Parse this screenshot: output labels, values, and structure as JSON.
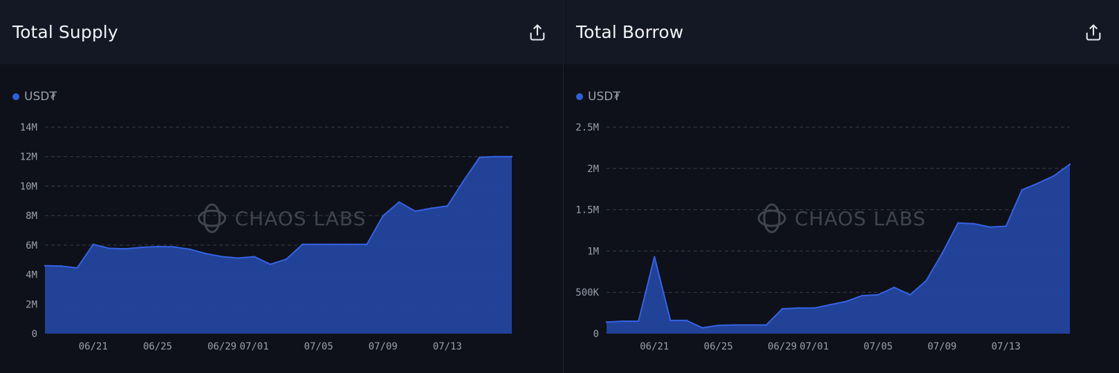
{
  "panels": [
    {
      "title": "Total Supply",
      "legend": "USD₮",
      "watermark": "CHAOS LABS",
      "share_icon": "share-upload-icon"
    },
    {
      "title": "Total Borrow",
      "legend": "USD₮",
      "watermark": "CHAOS LABS",
      "share_icon": "share-upload-icon"
    }
  ],
  "colors": {
    "fill": "#2446a3",
    "line": "#3563e6",
    "grid": "#3a3f4c",
    "axis_text": "#9aa0ad",
    "watermark": "#6a6e78"
  },
  "chart_data": [
    {
      "type": "area",
      "title": "Total Supply",
      "series": [
        {
          "name": "USD₮",
          "values": [
            4.6,
            4.58,
            4.45,
            6.05,
            5.78,
            5.75,
            5.85,
            5.9,
            5.88,
            5.72,
            5.42,
            5.22,
            5.12,
            5.22,
            4.7,
            5.05,
            6.05,
            6.05,
            6.05,
            6.05,
            6.05,
            7.98,
            8.92,
            8.3,
            8.5,
            8.65,
            10.35,
            11.95,
            12.0,
            12.0
          ]
        }
      ],
      "x_start": "06/18",
      "x_end": "07/17",
      "x_ticks": [
        "06/21",
        "06/25",
        "06/29",
        "07/01",
        "07/05",
        "07/09",
        "07/13"
      ],
      "x_tick_index": [
        3,
        7,
        11,
        13,
        17,
        21,
        25
      ],
      "y_ticks": [
        "0",
        "2M",
        "4M",
        "6M",
        "8M",
        "10M",
        "12M",
        "14M"
      ],
      "y_tick_values": [
        0,
        2,
        4,
        6,
        8,
        10,
        12,
        14
      ],
      "ylim": [
        0,
        14
      ],
      "unit": "M",
      "grid": true
    },
    {
      "type": "area",
      "title": "Total Borrow",
      "series": [
        {
          "name": "USD₮",
          "values": [
            0.14,
            0.15,
            0.15,
            0.93,
            0.16,
            0.16,
            0.07,
            0.1,
            0.105,
            0.105,
            0.105,
            0.3,
            0.31,
            0.31,
            0.35,
            0.39,
            0.46,
            0.47,
            0.56,
            0.47,
            0.64,
            0.97,
            1.34,
            1.33,
            1.29,
            1.3,
            1.74,
            1.82,
            1.91,
            2.05
          ]
        }
      ],
      "x_start": "06/18",
      "x_end": "07/17",
      "x_ticks": [
        "06/21",
        "06/25",
        "06/29",
        "07/01",
        "07/05",
        "07/09",
        "07/13"
      ],
      "x_tick_index": [
        3,
        7,
        11,
        13,
        17,
        21,
        25
      ],
      "y_ticks": [
        "0",
        "500K",
        "1M",
        "1.5M",
        "2M",
        "2.5M"
      ],
      "y_tick_values": [
        0,
        0.5,
        1,
        1.5,
        2,
        2.5
      ],
      "ylim": [
        0,
        2.5
      ],
      "unit": "M",
      "grid": true
    }
  ]
}
